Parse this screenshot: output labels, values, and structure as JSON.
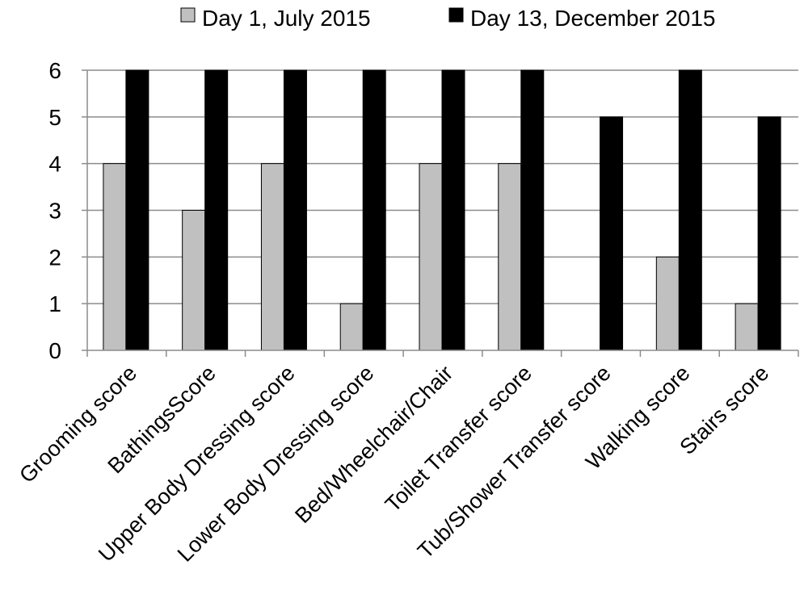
{
  "chart_data": {
    "type": "bar",
    "title": "",
    "xlabel": "",
    "ylabel": "",
    "categories": [
      "Grooming score",
      "BathingsScore",
      "Upper Body Dressing score",
      "Lower Body Dressing score",
      "Bed/Wheelchair/Chair",
      "Toilet Transfer score",
      "Tub/Shower Transfer score",
      "Walking score",
      "Stairs score"
    ],
    "series": [
      {
        "name": "Day 1, July 2015",
        "color": "#c0c0c0",
        "values": [
          4,
          3,
          4,
          1,
          4,
          4,
          0,
          2,
          1
        ]
      },
      {
        "name": "Day 13, December 2015",
        "color": "#000000",
        "values": [
          6,
          6,
          6,
          6,
          6,
          6,
          5,
          6,
          5
        ]
      }
    ],
    "ylim": [
      0,
      6
    ],
    "yticks": [
      "0",
      "1",
      "2",
      "3",
      "4",
      "5",
      "6"
    ],
    "grid": "horizontal",
    "legend_position": "top"
  }
}
